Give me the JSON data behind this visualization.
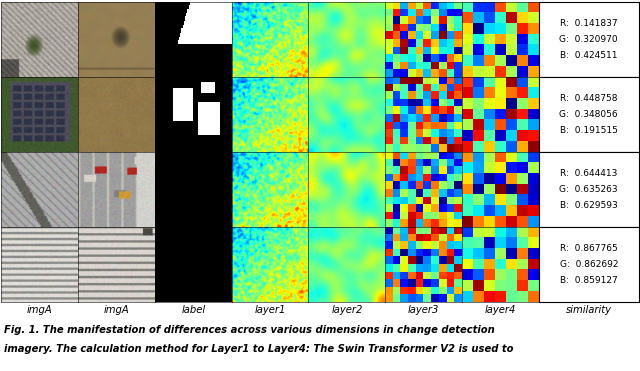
{
  "col_labels": [
    "imgA",
    "imgA",
    "label",
    "layer1",
    "layer2",
    "layer3",
    "layer4",
    "similarity"
  ],
  "similarity_rows": [
    {
      "R": 0.141837,
      "G": 0.32097,
      "B": 0.424511
    },
    {
      "R": 0.448758,
      "G": 0.348056,
      "B": 0.191515
    },
    {
      "R": 0.644413,
      "G": 0.635263,
      "B": 0.629593
    },
    {
      "R": 0.867765,
      "G": 0.862692,
      "B": 0.859127
    }
  ],
  "caption_line1": "Fig. 1. The manifestation of differences across various dimensions in change detection",
  "caption_line2": "imagery. The calculation method for Layer1 to Layer4: The Swin Transformer V2 is used to",
  "fig_width": 6.4,
  "fig_height": 3.71,
  "dpi": 100
}
